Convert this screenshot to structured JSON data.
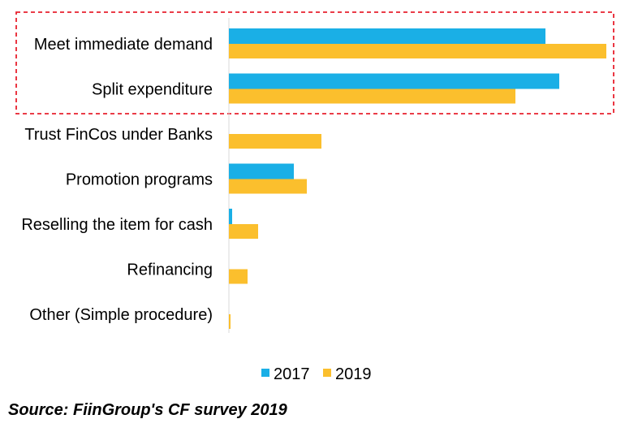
{
  "chart_data": {
    "type": "bar",
    "orientation": "horizontal",
    "categories": [
      "Meet immediate demand",
      "Split expenditure",
      "Trust FinCos under Banks",
      "Promotion programs",
      "Reselling the item for cash",
      "Refinancing",
      "Other (Simple procedure)"
    ],
    "series": [
      {
        "name": "2017",
        "color": "#1AAFE6",
        "values": [
          39,
          40.7,
          0,
          8,
          0.4,
          0,
          0
        ]
      },
      {
        "name": "2019",
        "color": "#FBBF2D",
        "values": [
          46.5,
          35.3,
          11.4,
          9.6,
          3.6,
          2.3,
          0.2
        ]
      }
    ],
    "xlim": [
      0,
      48
    ],
    "grid": false,
    "legend": "bottom",
    "highlight": {
      "categories": [
        "Meet immediate demand",
        "Split expenditure"
      ],
      "style": "dashed-red-box",
      "color": "#E8202E"
    }
  },
  "source_text": "Source: FiinGroup's CF survey 2019"
}
